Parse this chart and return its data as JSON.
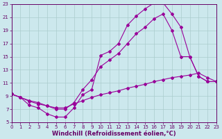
{
  "background_color": "#cce8ed",
  "line_color": "#990099",
  "grid_color": "#aacccc",
  "xlabel": "Windchill (Refroidissement éolien,°C)",
  "xlim": [
    0,
    23
  ],
  "ylim": [
    5,
    23
  ],
  "xticks": [
    0,
    1,
    2,
    3,
    4,
    5,
    6,
    7,
    8,
    9,
    10,
    11,
    12,
    13,
    14,
    15,
    16,
    17,
    18,
    19,
    20,
    21,
    22,
    23
  ],
  "yticks": [
    5,
    7,
    9,
    11,
    13,
    15,
    17,
    19,
    21,
    23
  ],
  "curve1_x": [
    0,
    1,
    2,
    3,
    4,
    5,
    6,
    7,
    8,
    9,
    10,
    11,
    12,
    13,
    14,
    15,
    16,
    17,
    18,
    19,
    20,
    21,
    22,
    23
  ],
  "curve1_y": [
    9.3,
    8.8,
    7.6,
    7.2,
    6.3,
    5.8,
    5.8,
    7.2,
    9.2,
    10.0,
    15.2,
    15.8,
    17.0,
    19.8,
    21.2,
    22.3,
    23.2,
    23.2,
    21.5,
    19.5,
    15.0,
    12.0,
    11.2,
    11.2
  ],
  "curve2_x": [
    0,
    1,
    2,
    3,
    4,
    5,
    6,
    7,
    8,
    9,
    10,
    11,
    12,
    13,
    14,
    15,
    16,
    17,
    18,
    19,
    20,
    21,
    22,
    23
  ],
  "curve2_y": [
    9.3,
    8.8,
    8.3,
    8.0,
    7.5,
    7.0,
    7.0,
    8.0,
    10.0,
    11.5,
    13.5,
    14.5,
    15.5,
    17.0,
    18.5,
    19.5,
    20.8,
    21.5,
    19.0,
    15.0,
    15.0,
    12.0,
    11.2,
    11.2
  ],
  "curve3_x": [
    0,
    1,
    2,
    3,
    4,
    5,
    6,
    7,
    8,
    9,
    10,
    11,
    12,
    13,
    14,
    15,
    16,
    17,
    18,
    19,
    20,
    21,
    22,
    23
  ],
  "curve3_y": [
    9.3,
    8.8,
    8.2,
    7.8,
    7.5,
    7.2,
    7.2,
    7.8,
    8.3,
    8.8,
    9.2,
    9.5,
    9.8,
    10.2,
    10.5,
    10.8,
    11.2,
    11.5,
    11.8,
    12.0,
    12.2,
    12.5,
    11.8,
    11.2
  ],
  "xlabel_fontsize": 6,
  "tick_fontsize": 5,
  "axis_label_color": "#660066",
  "marker": "D",
  "markersize": 2.0,
  "linewidth": 0.8
}
